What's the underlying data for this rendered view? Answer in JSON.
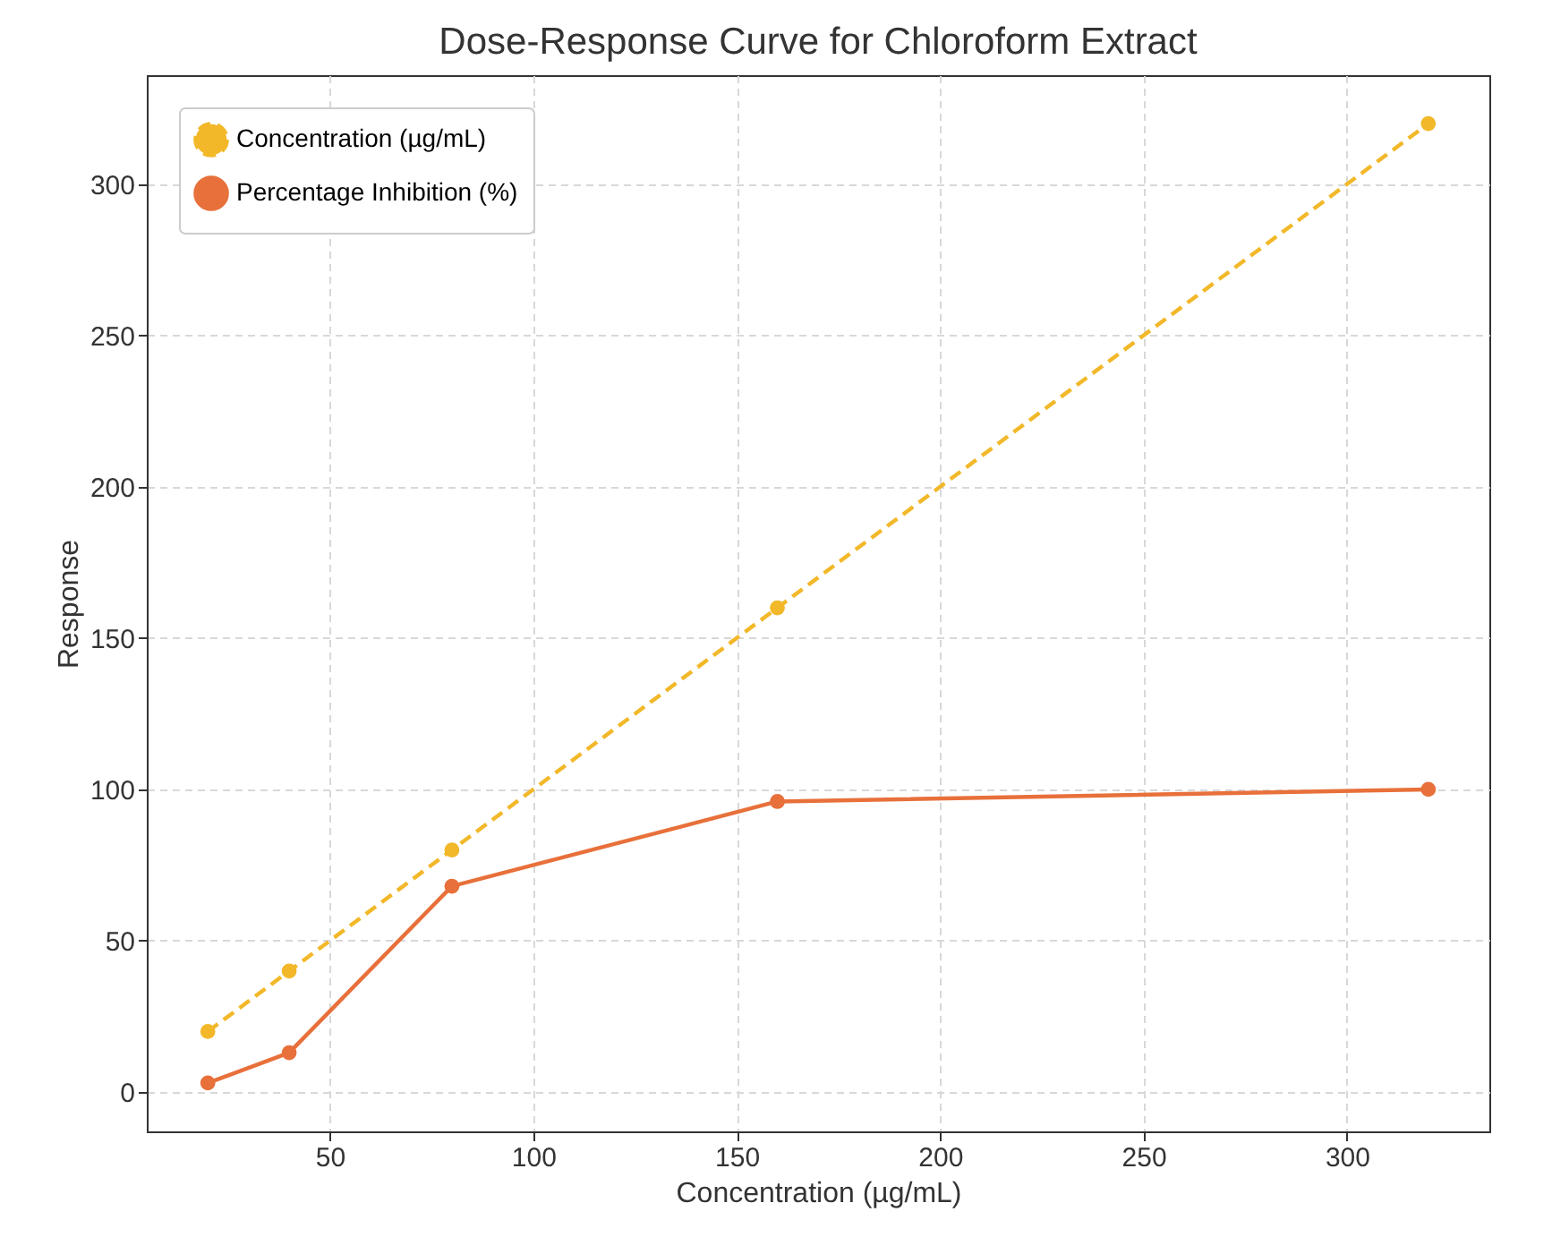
{
  "chart_data": {
    "type": "line",
    "title": "Dose-Response Curve for Chloroform Extract",
    "xlabel": "Concentration (µg/mL)",
    "ylabel": "Response",
    "x": [
      20,
      40,
      80,
      160,
      320
    ],
    "series": [
      {
        "name": "Concentration (µg/mL)",
        "color": "#f2b829",
        "values": [
          20,
          40,
          80,
          160,
          320
        ],
        "line_style": "dashed"
      },
      {
        "name": "Percentage Inhibition (%)",
        "color": "#e8703a",
        "values": [
          3,
          13,
          68,
          96,
          100
        ],
        "line_style": "solid"
      }
    ],
    "xlim": [
      5,
      335
    ],
    "xticks": [
      50,
      100,
      150,
      200,
      250,
      300
    ],
    "ylim": [
      -13,
      336
    ],
    "yticks": [
      0,
      50,
      100,
      150,
      200,
      250,
      300
    ],
    "grid": true,
    "legend": "top left",
    "marker": "circle"
  }
}
